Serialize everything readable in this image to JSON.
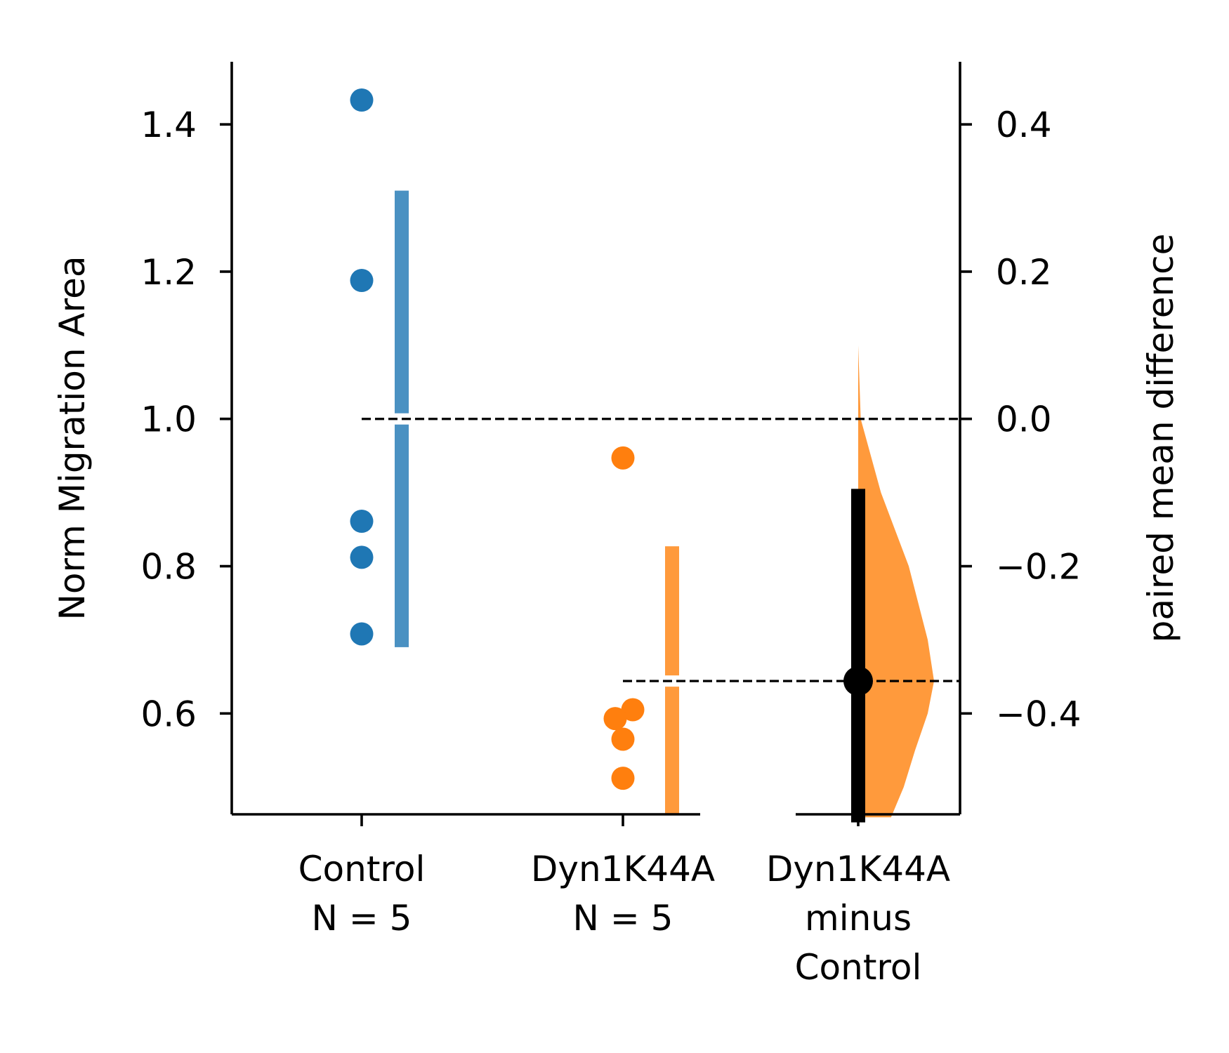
{
  "chart_data": {
    "type": "scatter",
    "subtype": "estimation-plot (paired mean difference)",
    "y_left_label": "Norm Migration Area",
    "y_right_label": "paired mean difference",
    "y_left_ticks": [
      "0.6",
      "0.8",
      "1.0",
      "1.2",
      "1.4"
    ],
    "y_left_tick_values": [
      0.6,
      0.8,
      1.0,
      1.2,
      1.4
    ],
    "y_right_ticks": [
      "−0.4",
      "−0.2",
      "0.0",
      "0.2",
      "0.4"
    ],
    "y_right_tick_values": [
      -0.4,
      -0.2,
      0.0,
      0.2,
      0.4
    ],
    "ylim_left": [
      0.463,
      1.485
    ],
    "categories": [
      {
        "lines": [
          "Control",
          "N = 5"
        ]
      },
      {
        "lines": [
          "Dyn1K44A",
          "N = 5"
        ]
      },
      {
        "lines": [
          "Dyn1K44A",
          "minus",
          "Control"
        ]
      }
    ],
    "series": [
      {
        "group": "Control",
        "color": "#1f77b4",
        "points": [
          1.433,
          1.188,
          0.861,
          0.812,
          0.708
        ],
        "mean": 1.0,
        "sd_bar": [
          0.69,
          1.31
        ]
      },
      {
        "group": "Dyn1K44A",
        "color": "#ff7f0e",
        "points": [
          0.947,
          0.605,
          0.593,
          0.565,
          0.512
        ],
        "mean": 0.644,
        "sd_bar": [
          0.463,
          0.827
        ]
      }
    ],
    "effect_size": {
      "label": "Dyn1K44A minus Control",
      "color": "#ff9a3c",
      "point": -0.356,
      "ci": [
        -0.548,
        -0.095
      ],
      "distribution": [
        [
          -0.541,
          0.026
        ],
        [
          -0.5,
          0.036
        ],
        [
          -0.45,
          0.045
        ],
        [
          -0.4,
          0.055
        ],
        [
          -0.356,
          0.06
        ],
        [
          -0.3,
          0.055
        ],
        [
          -0.2,
          0.04
        ],
        [
          -0.1,
          0.018
        ],
        [
          0.0,
          0.002
        ],
        [
          0.1,
          0.0
        ]
      ]
    },
    "reference_lines": [
      0.0,
      -0.356
    ],
    "grid": false,
    "legend": "none"
  }
}
